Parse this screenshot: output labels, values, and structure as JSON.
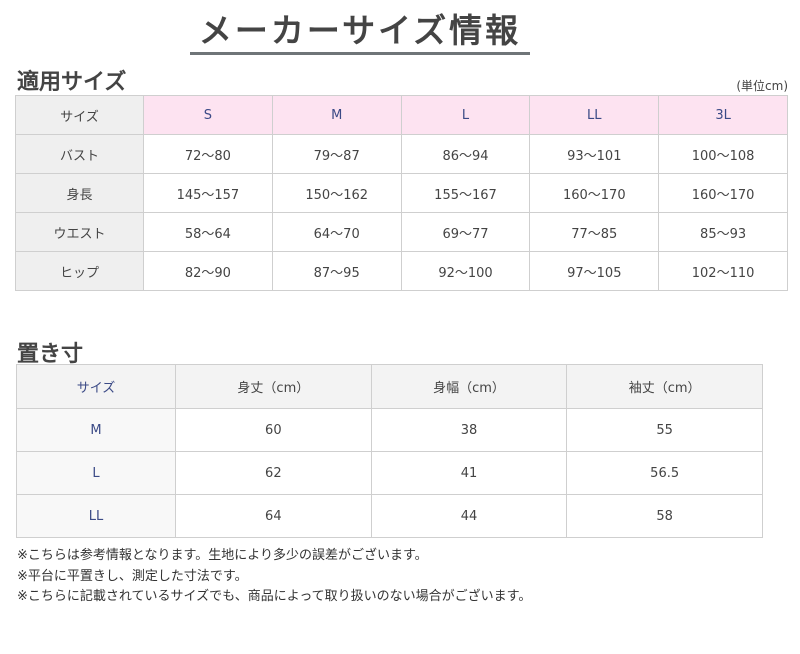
{
  "title": "メーカーサイズ情報",
  "section1": {
    "heading": "適用サイズ",
    "unit": "(単位cm)",
    "header": [
      "サイズ",
      "S",
      "M",
      "L",
      "LL",
      "3L"
    ],
    "rows": [
      [
        "バスト",
        "72〜80",
        "79〜87",
        "86〜94",
        "93〜101",
        "100〜108"
      ],
      [
        "身長",
        "145〜157",
        "150〜162",
        "155〜167",
        "160〜170",
        "160〜170"
      ],
      [
        "ウエスト",
        "58〜64",
        "64〜70",
        "69〜77",
        "77〜85",
        "85〜93"
      ],
      [
        "ヒップ",
        "82〜90",
        "87〜95",
        "92〜100",
        "97〜105",
        "102〜110"
      ]
    ]
  },
  "section2": {
    "heading": "置き寸",
    "header": [
      "サイズ",
      "身丈（cm）",
      "身幅（cm）",
      "袖丈（cm）"
    ],
    "rows": [
      [
        "M",
        "60",
        "38",
        "55"
      ],
      [
        "L",
        "62",
        "41",
        "56.5"
      ],
      [
        "LL",
        "64",
        "44",
        "58"
      ]
    ]
  },
  "notes": [
    "※こちらは参考情報となります。生地により多少の誤差がございます。",
    "※平台に平置きし、測定した寸法です。",
    "※こちらに記載されているサイズでも、商品によって取り扱いのない場合がございます。"
  ]
}
